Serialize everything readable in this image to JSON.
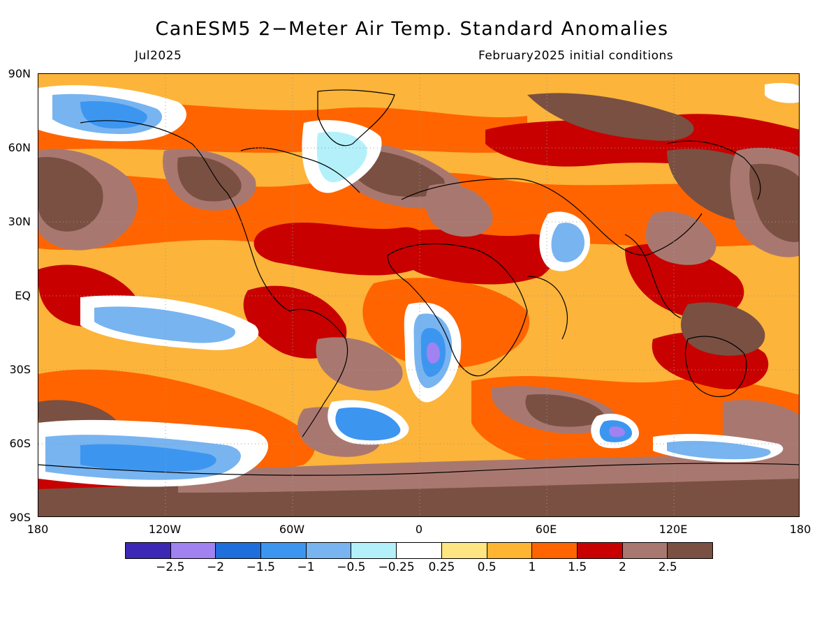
{
  "title": "CanESM5 2−Meter Air Temp. Standard Anomalies",
  "subtitle_left": "Jul2025",
  "subtitle_right": "February2025 initial conditions",
  "lat_labels": [
    "90N",
    "60N",
    "30N",
    "EQ",
    "30S",
    "60S",
    "90S"
  ],
  "lon_labels": [
    "180",
    "120W",
    "60W",
    "0",
    "60E",
    "120E",
    "180"
  ],
  "colorbar": {
    "colors": [
      "#3c28b4",
      "#a082f0",
      "#1e6edc",
      "#3c96f0",
      "#78b4f0",
      "#b4f0fa",
      "#ffffff",
      "#ffe682",
      "#ffb432",
      "#ff6400",
      "#c80000",
      "#a87870",
      "#7a5042"
    ],
    "labels": [
      "−2.5",
      "−2",
      "−1.5",
      "−1",
      "−0.5",
      "−0.25",
      "0.25",
      "0.5",
      "1",
      "1.5",
      "2",
      "2.5"
    ]
  },
  "map": {
    "projection": "equirectangular",
    "lon_range": [
      -180,
      180
    ],
    "lat_range": [
      -90,
      90
    ],
    "gridlines": "dotted",
    "coastlines": true
  }
}
